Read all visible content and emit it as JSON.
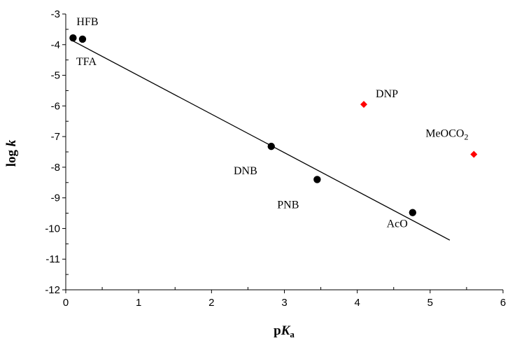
{
  "chart_data": {
    "type": "scatter",
    "title": "",
    "xlabel": "pKa",
    "ylabel": "log k",
    "xlim": [
      0,
      6
    ],
    "ylim": [
      -12,
      -3
    ],
    "x_ticks": [
      "0",
      "1",
      "2",
      "3",
      "4",
      "5",
      "6"
    ],
    "y_ticks": [
      "-3",
      "-4",
      "-5",
      "-6",
      "-7",
      "-8",
      "-9",
      "-10",
      "-11",
      "-12"
    ],
    "grid": false,
    "legend": false,
    "series": [
      {
        "marker": "circle",
        "color": "#000000",
        "points": [
          {
            "label": "HFB",
            "x": 0.1,
            "y": -3.78
          },
          {
            "label": "TFA",
            "x": 0.23,
            "y": -3.82
          },
          {
            "label": "DNB",
            "x": 2.82,
            "y": -7.32
          },
          {
            "label": "PNB",
            "x": 3.45,
            "y": -8.4
          },
          {
            "label": "AcO",
            "x": 4.76,
            "y": -9.48
          }
        ]
      },
      {
        "marker": "diamond",
        "color": "#ff0000",
        "points": [
          {
            "label": "DNP",
            "x": 4.09,
            "y": -5.95
          },
          {
            "label": "MeOCO2",
            "x": 5.6,
            "y": -7.58
          }
        ]
      }
    ],
    "fit_line": {
      "x": [
        0.1,
        5.27
      ],
      "y": [
        -3.88,
        -10.38
      ],
      "color": "#000000"
    }
  }
}
